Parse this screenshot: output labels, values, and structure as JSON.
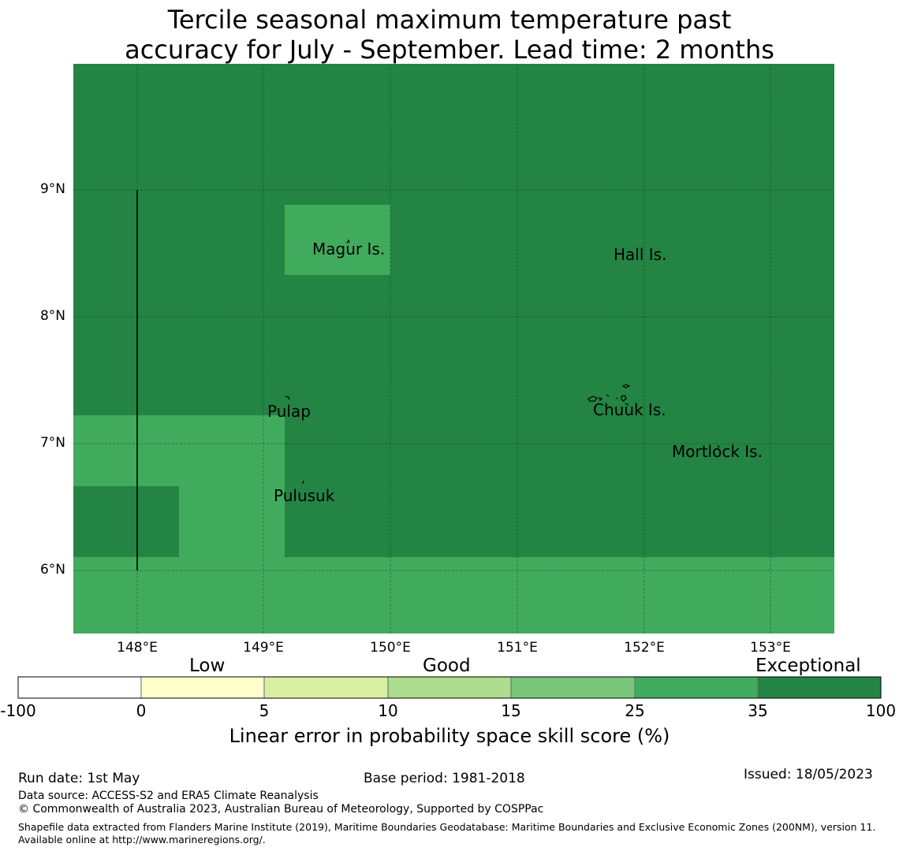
{
  "title": {
    "line1": "Tercile seasonal maximum temperature past",
    "line2": "accuracy for July - September. Lead time: 2 months"
  },
  "map": {
    "lat_labels": [
      "9°N",
      "8°N",
      "7°N",
      "6°N"
    ],
    "lon_labels": [
      "148°E",
      "149°E",
      "150°E",
      "151°E",
      "152°E",
      "153°E"
    ],
    "places": [
      "Magur Is.",
      "Hall Is.",
      "Pulap",
      "Chuuk Is.",
      "Mortlock Is.",
      "Pulusuk"
    ],
    "colors": {
      "exceptional": "#238443",
      "good_high": "#41ab5d"
    }
  },
  "colorbar": {
    "categories": [
      "Low",
      "Good",
      "Exceptional"
    ],
    "ticks": [
      "-100",
      "0",
      "5",
      "10",
      "15",
      "25",
      "35",
      "100"
    ],
    "colors": [
      "#ffffff",
      "#ffffcc",
      "#d9f0a3",
      "#addd8e",
      "#78c679",
      "#41ab5d",
      "#238443"
    ],
    "title": "Linear error in probability space skill score (%)"
  },
  "footer": {
    "run_date": "Run date: 1st May",
    "base_period": "Base period: 1981-2018",
    "issued": "Issued: 18/05/2023",
    "data_source": "Data source: ACCESS-S2 and ERA5 Climate Reanalysis",
    "copyright": "© Commonwealth of Australia 2023, Australian Bureau of Meteorology, Supported by COSPPac",
    "shapefile": "Shapefile data extracted from Flanders Marine Institute (2019), Maritime Boundaries Geodatabase: Maritime Boundaries and Exclusive Economic Zones (200NM), version 11. Available online at http://www.marineregions.org/."
  }
}
